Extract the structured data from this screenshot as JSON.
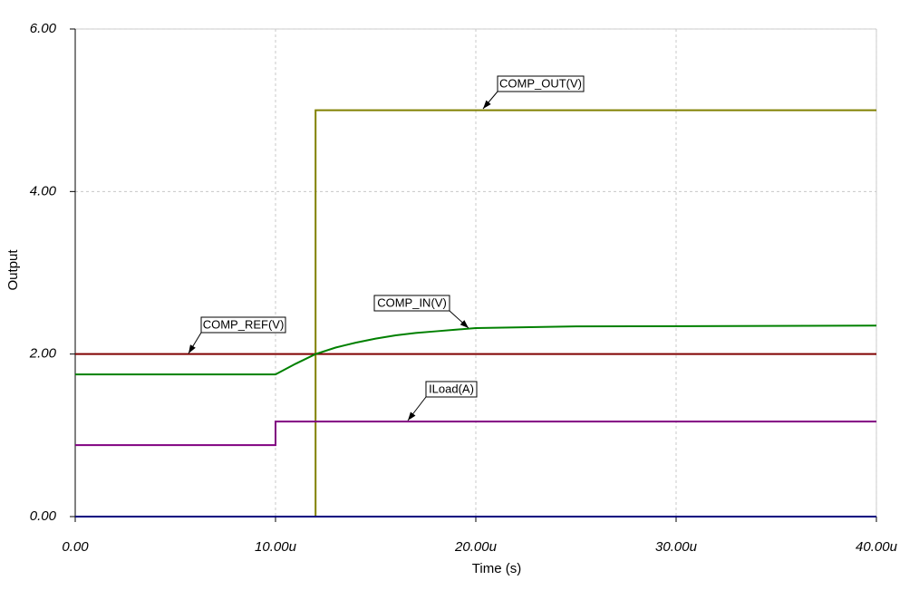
{
  "chart_data": {
    "type": "line",
    "xlabel": "Time (s)",
    "ylabel": "Output",
    "xlim": [
      0,
      4e-05
    ],
    "ylim": [
      0,
      6
    ],
    "xticks": [
      {
        "value": 0,
        "label": "0.00"
      },
      {
        "value": 1e-05,
        "label": "10.00u"
      },
      {
        "value": 2e-05,
        "label": "20.00u"
      },
      {
        "value": 3e-05,
        "label": "30.00u"
      },
      {
        "value": 4e-05,
        "label": "40.00u"
      }
    ],
    "yticks": [
      {
        "value": 0,
        "label": "0.00"
      },
      {
        "value": 2,
        "label": "2.00"
      },
      {
        "value": 4,
        "label": "4.00"
      },
      {
        "value": 6,
        "label": "6.00"
      }
    ],
    "grid": true,
    "series": [
      {
        "name": "COMP_OUT(V)",
        "color": "#808000",
        "x": [
          0,
          1.2e-05,
          1.2e-05,
          4e-05
        ],
        "values": [
          0,
          0,
          5,
          5
        ]
      },
      {
        "name": "COMP_REF(V)",
        "color": "#800000",
        "x": [
          0,
          4e-05
        ],
        "values": [
          2,
          2
        ]
      },
      {
        "name": "COMP_IN(V)",
        "color": "#008000",
        "x": [
          0,
          1e-05,
          1.1e-05,
          1.2e-05,
          1.3e-05,
          1.4e-05,
          1.5e-05,
          1.6e-05,
          1.7e-05,
          1.8e-05,
          1.9e-05,
          2e-05,
          2.5e-05,
          4e-05
        ],
        "values": [
          1.75,
          1.75,
          1.88,
          2.0,
          2.08,
          2.14,
          2.19,
          2.23,
          2.26,
          2.28,
          2.3,
          2.32,
          2.34,
          2.35
        ]
      },
      {
        "name": "ILoad(A)",
        "color": "#800080",
        "x": [
          0,
          1e-05,
          1e-05,
          4e-05
        ],
        "values": [
          0.88,
          0.88,
          1.17,
          1.17
        ]
      },
      {
        "color": "#000080",
        "x": [
          0,
          4e-05
        ],
        "values": [
          0,
          0
        ]
      }
    ]
  }
}
